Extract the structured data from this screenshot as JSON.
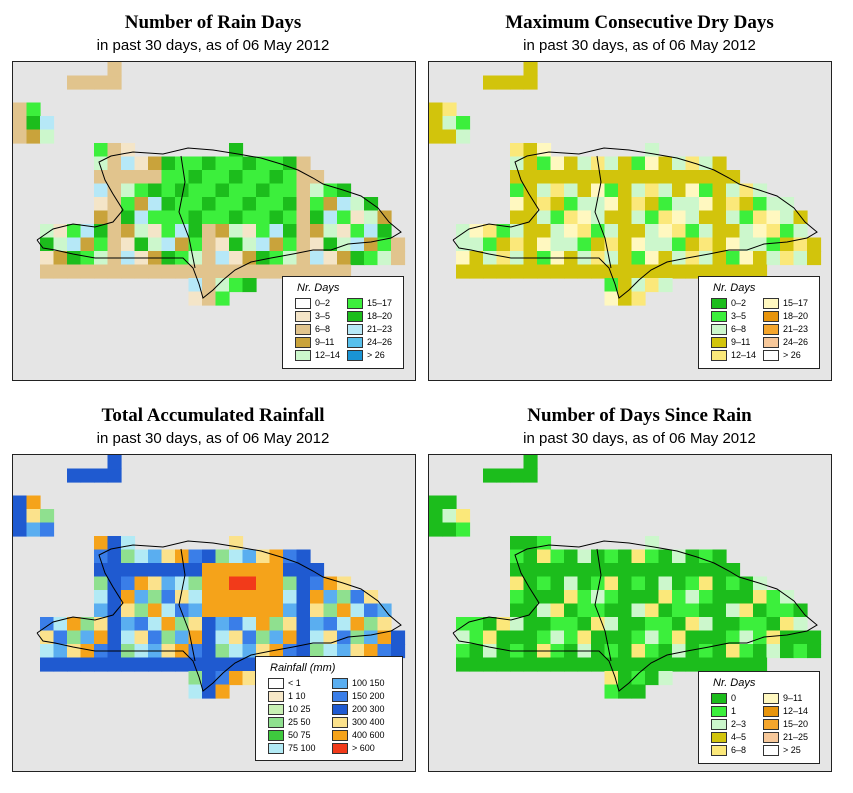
{
  "colors": {
    "map_background": "#e5e5e5",
    "coast": "#000000"
  },
  "panels": [
    {
      "id": "rain-days",
      "title": "Number of Rain Days",
      "subtitle": "in past 30 days, as of  06 May 2012",
      "legend": {
        "title": "Nr. Days",
        "items": [
          {
            "label": "0–2",
            "color": "#ffffff"
          },
          {
            "label": "3–5",
            "color": "#f4e5c8"
          },
          {
            "label": "6–8",
            "color": "#e1c48d"
          },
          {
            "label": "9–11",
            "color": "#c9a33b"
          },
          {
            "label": "12–14",
            "color": "#ccf7cc"
          },
          {
            "label": "15–17",
            "color": "#3cef3c"
          },
          {
            "label": "18–20",
            "color": "#1cbd1c"
          },
          {
            "label": "21–23",
            "color": "#b6e8f7"
          },
          {
            "label": "24–26",
            "color": "#57c0ec"
          },
          {
            "label": "> 26",
            "color": "#1a94d4"
          }
        ]
      }
    },
    {
      "id": "dry-days",
      "title": "Maximum Consecutive Dry Days",
      "subtitle": "in past 30 days, as of  06 May 2012",
      "legend": {
        "title": "Nr. Days",
        "items": [
          {
            "label": "0–2",
            "color": "#1cbd1c"
          },
          {
            "label": "3–5",
            "color": "#3cef3c"
          },
          {
            "label": "6–8",
            "color": "#ccf7cc"
          },
          {
            "label": "9–11",
            "color": "#d2c40c"
          },
          {
            "label": "12–14",
            "color": "#fbe87a"
          },
          {
            "label": "15–17",
            "color": "#fff8c0"
          },
          {
            "label": "18–20",
            "color": "#e8950c"
          },
          {
            "label": "21–23",
            "color": "#f5a62c"
          },
          {
            "label": "24–26",
            "color": "#f7c89a"
          },
          {
            "label": "> 26",
            "color": "#ffffff"
          }
        ]
      }
    },
    {
      "id": "rainfall",
      "title": "Total Accumulated Rainfall",
      "subtitle": "in past 30 days, as of  06 May 2012",
      "legend": {
        "title": "Rainfall (mm)",
        "items": [
          {
            "label": "< 1",
            "color": "#ffffff"
          },
          {
            "label": "1    10",
            "color": "#f7e8c8"
          },
          {
            "label": "10    25",
            "color": "#c8f0b4"
          },
          {
            "label": "25    50",
            "color": "#8fe08f"
          },
          {
            "label": "50    75",
            "color": "#3ec93e"
          },
          {
            "label": "75  100",
            "color": "#b2eaf5"
          },
          {
            "label": "100  150",
            "color": "#5aaef0"
          },
          {
            "label": "150  200",
            "color": "#3a7ee8"
          },
          {
            "label": "200  300",
            "color": "#1f5ad0"
          },
          {
            "label": "300  400",
            "color": "#fbe28c"
          },
          {
            "label": "400  600",
            "color": "#f5a31a"
          },
          {
            "label": "> 600",
            "color": "#f23a1a"
          }
        ]
      }
    },
    {
      "id": "since-rain",
      "title": "Number of Days Since Rain",
      "subtitle": "in past 30 days, as of  06 May 2012",
      "legend": {
        "title": "Nr. Days",
        "items": [
          {
            "label": "0",
            "color": "#1cbd1c"
          },
          {
            "label": "1",
            "color": "#3cef3c"
          },
          {
            "label": "2–3",
            "color": "#ccf7cc"
          },
          {
            "label": "4–5",
            "color": "#d2c40c"
          },
          {
            "label": "6–8",
            "color": "#fbe87a"
          },
          {
            "label": "9–11",
            "color": "#fff8c0"
          },
          {
            "label": "12–14",
            "color": "#e8950c"
          },
          {
            "label": "15–20",
            "color": "#f5a62c"
          },
          {
            "label": "21–25",
            "color": "#f7c89a"
          },
          {
            "label": "> 25",
            "color": "#ffffff"
          }
        ]
      }
    }
  ]
}
